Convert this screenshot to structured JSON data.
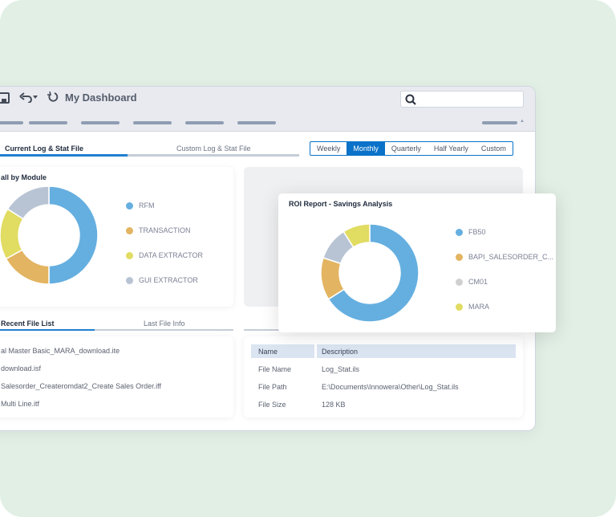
{
  "header": {
    "title": "My Dashboard",
    "icons": [
      "save-icon",
      "undo-icon",
      "refresh-icon",
      "search-icon"
    ],
    "search_placeholder": ""
  },
  "tabs": [
    {
      "label": "Current Log & Stat File",
      "active": true
    },
    {
      "label": "Custom Log & Stat File",
      "active": false
    }
  ],
  "periods": [
    {
      "label": "Weekly"
    },
    {
      "label": "Monthly",
      "active": true
    },
    {
      "label": "Quarterly"
    },
    {
      "label": "Half Yearly"
    },
    {
      "label": "Custom"
    }
  ],
  "module_chart": {
    "title": "all by Module",
    "chart_data": {
      "type": "pie",
      "donut": true,
      "categories": [
        "RFM",
        "TRANSACTION",
        "DATA EXTRACTOR",
        "GUI EXTRACTOR"
      ],
      "values": [
        50,
        17,
        17,
        16
      ],
      "colors": [
        "#65afe0",
        "#e3b461",
        "#e1dc62",
        "#b8c4d4"
      ]
    }
  },
  "roi_chart": {
    "title": "ROI Report - Savings Analysis",
    "chart_data": {
      "type": "pie",
      "donut": true,
      "categories": [
        "FB50",
        "BAPI_SALESORDER_C...",
        "CM01",
        "MARA"
      ],
      "values": [
        66,
        14,
        11,
        9
      ],
      "colors": [
        "#65afe0",
        "#e3b461",
        "#b8c4d4",
        "#e1dc62"
      ],
      "legend_colors": [
        "#65afe0",
        "#e3b461",
        "#d0d0d0",
        "#e1dc62"
      ]
    }
  },
  "file_tabs": [
    {
      "label": "Recent File List",
      "active": true
    },
    {
      "label": "Last File Info",
      "active": false
    }
  ],
  "recent_files": [
    "al Master Basic_MARA_download.ite",
    "download.isf",
    "Salesorder_Createromdat2_Create Sales Order.iff",
    "Multi Line.itf"
  ],
  "file_info": {
    "headers": [
      "Name",
      "Description"
    ],
    "rows": [
      [
        "File Name",
        "Log_Stat.ils"
      ],
      [
        "File Path",
        "E:\\Documents\\Innowera\\Other\\Log_Stat.ils"
      ],
      [
        "File Size",
        "128 KB"
      ]
    ]
  }
}
